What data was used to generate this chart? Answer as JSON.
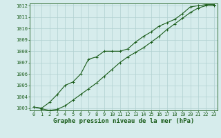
{
  "xlabel": "Graphe pression niveau de la mer (hPa)",
  "background_color": "#d6ecec",
  "grid_color": "#b0d0d0",
  "line_color": "#1a5c1a",
  "series1_x": [
    0,
    1,
    2,
    3,
    4,
    5,
    6,
    7,
    8,
    9,
    10,
    11,
    12,
    13,
    14,
    15,
    16,
    17,
    18,
    19,
    20,
    21,
    22,
    23
  ],
  "series1_y": [
    1003.1,
    1003.0,
    1003.5,
    1004.2,
    1005.0,
    1005.3,
    1006.0,
    1007.3,
    1007.5,
    1008.0,
    1008.0,
    1008.0,
    1008.2,
    1008.8,
    1009.3,
    1009.7,
    1010.2,
    1010.5,
    1010.8,
    1011.3,
    1011.9,
    1012.0,
    1012.1,
    1012.1
  ],
  "series2_x": [
    0,
    1,
    2,
    3,
    4,
    5,
    6,
    7,
    8,
    9,
    10,
    11,
    12,
    13,
    14,
    15,
    16,
    17,
    18,
    19,
    20,
    21,
    22,
    23
  ],
  "series2_y": [
    1003.1,
    1002.95,
    1002.8,
    1002.9,
    1003.2,
    1003.7,
    1004.2,
    1004.7,
    1005.2,
    1005.8,
    1006.4,
    1007.0,
    1007.5,
    1007.9,
    1008.3,
    1008.8,
    1009.3,
    1009.9,
    1010.4,
    1010.9,
    1011.4,
    1011.8,
    1012.0,
    1012.0
  ],
  "ylim": [
    1002.8,
    1012.2
  ],
  "xlim": [
    -0.5,
    23.5
  ],
  "yticks": [
    1003,
    1004,
    1005,
    1006,
    1007,
    1008,
    1009,
    1010,
    1011,
    1012
  ],
  "xticks": [
    0,
    1,
    2,
    3,
    4,
    5,
    6,
    7,
    8,
    9,
    10,
    11,
    12,
    13,
    14,
    15,
    16,
    17,
    18,
    19,
    20,
    21,
    22,
    23
  ],
  "tick_fontsize": 5.0,
  "xlabel_fontsize": 6.5,
  "lw": 0.8,
  "marker_size": 2.5
}
